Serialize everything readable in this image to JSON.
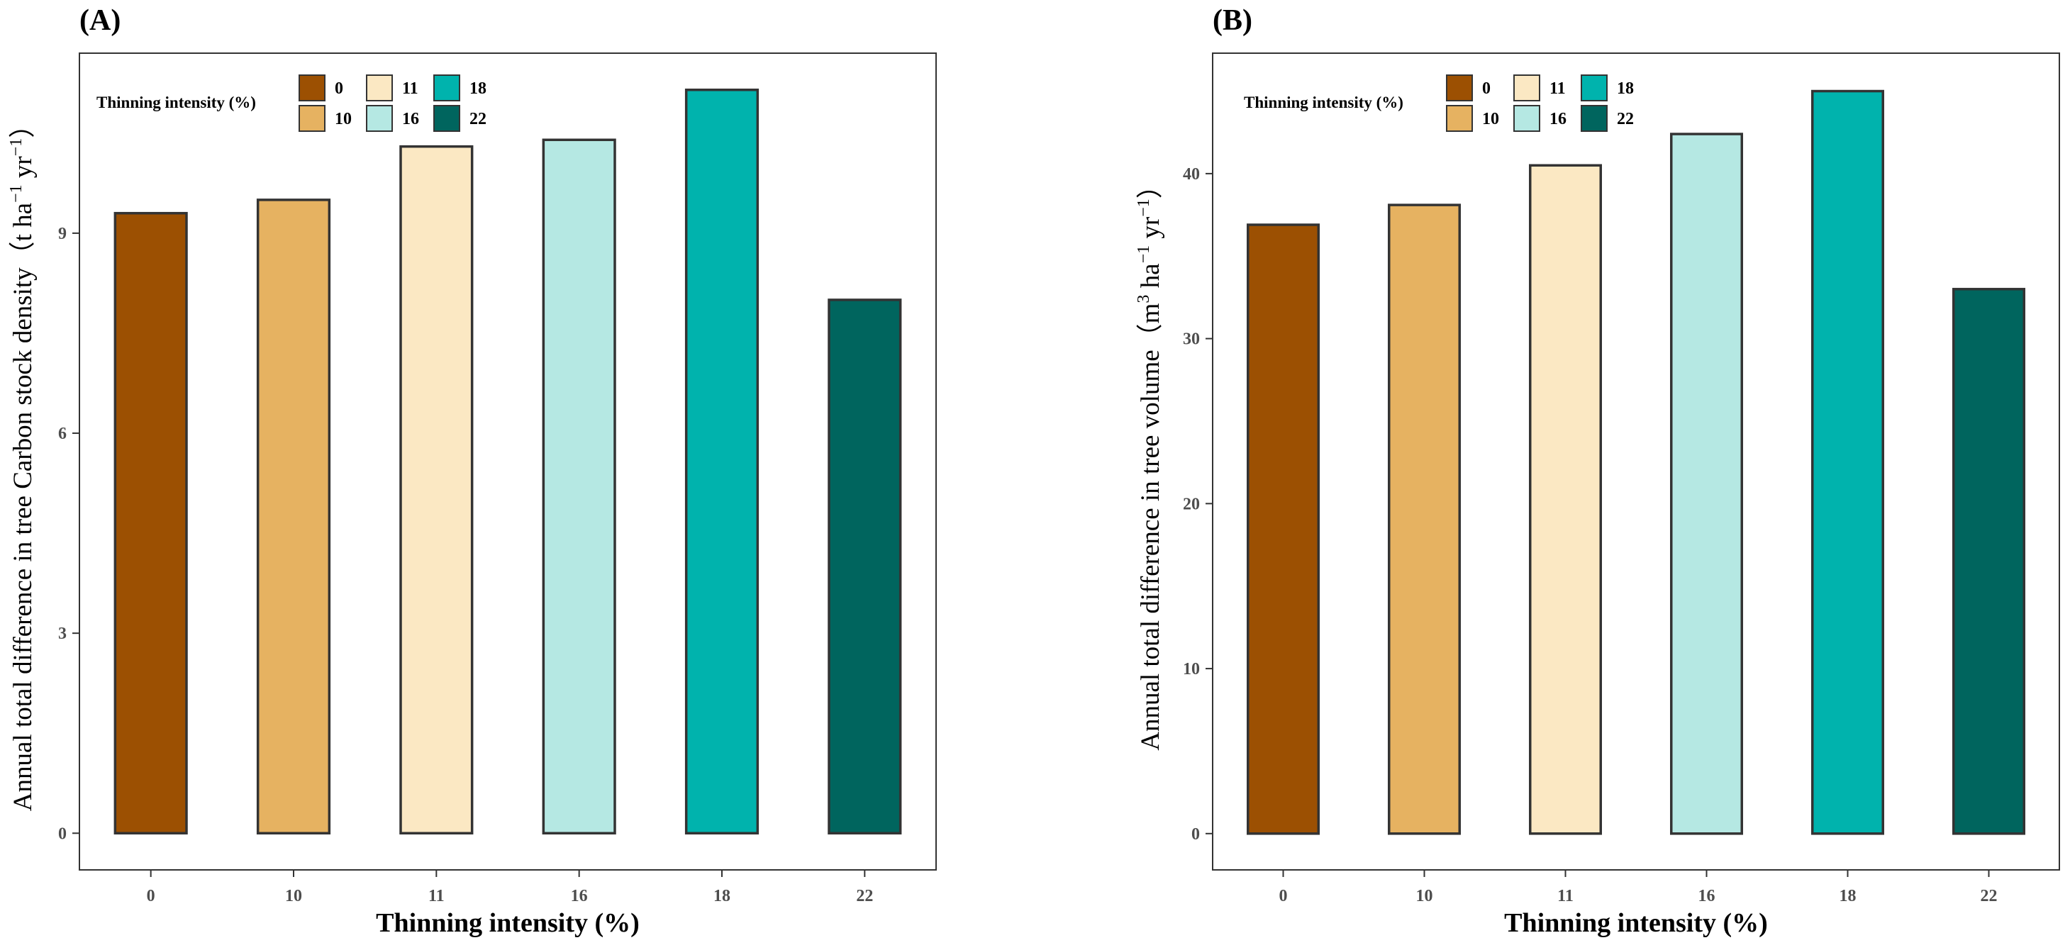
{
  "chart_data": [
    {
      "panel_label": "(A)",
      "type": "bar",
      "categories": [
        "0",
        "10",
        "11",
        "16",
        "18",
        "22"
      ],
      "values": [
        9.3,
        9.5,
        10.3,
        10.4,
        11.15,
        8.0
      ],
      "colors": [
        "#9c5002",
        "#e6b261",
        "#fbe8c3",
        "#b5e8e3",
        "#00b3ad",
        "#00655e"
      ],
      "xlabel": "Thinning intensity (%)",
      "ylabel_main": "Annual total difference in tree Carbon stock density",
      "ylabel_unit": {
        "open": "（",
        "t1": "t ha",
        "sup1": "−1",
        "t2": " yr",
        "sup2": "−1",
        "close": "）"
      },
      "yticks": [
        0,
        3,
        6,
        9
      ],
      "ylim": [
        -0.55,
        11.7
      ],
      "grid": false,
      "legend": {
        "title": "Thinning intensity (%)",
        "position": "top-left",
        "items": [
          "0",
          "10",
          "11",
          "16",
          "18",
          "22"
        ]
      }
    },
    {
      "panel_label": "(B)",
      "type": "bar",
      "categories": [
        "0",
        "10",
        "11",
        "16",
        "18",
        "22"
      ],
      "values": [
        36.9,
        38.1,
        40.5,
        42.4,
        45.0,
        33.0
      ],
      "colors": [
        "#9c5002",
        "#e6b261",
        "#fbe8c3",
        "#b5e8e3",
        "#00b3ad",
        "#00655e"
      ],
      "xlabel": "Thinning intensity (%)",
      "ylabel_main": "Annual total difference in tree volume",
      "ylabel_unit": {
        "open": "（",
        "t1": "m",
        "sup1": "3",
        "t2": " ha",
        "sup2": "−1",
        "t3": " yr",
        "sup3": "−1",
        "close": "）"
      },
      "yticks": [
        0,
        10,
        20,
        30,
        40
      ],
      "ylim": [
        -2.2,
        47.3
      ],
      "grid": false,
      "legend": {
        "title": "Thinning intensity (%)",
        "position": "top-left",
        "items": [
          "0",
          "10",
          "11",
          "16",
          "18",
          "22"
        ]
      }
    }
  ]
}
